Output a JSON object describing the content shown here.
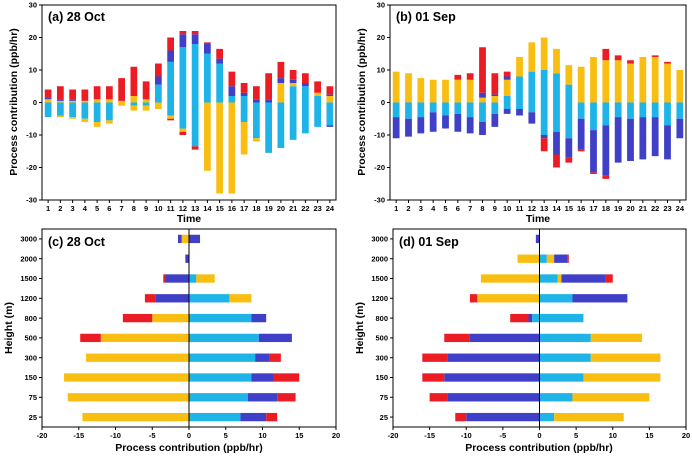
{
  "colors": {
    "sky": "#1EB4E8",
    "orange": "#F9BE12",
    "red": "#EC1C24",
    "navy": "#3F3FC7"
  },
  "chart_data": [
    {
      "type": "bar",
      "stacked": true,
      "title": "(a)  28 Oct",
      "xlabel": "Time",
      "ylabel": "Process contribution (ppb/hr)",
      "ylim": [
        -30,
        30
      ],
      "yticks": [
        -30,
        -20,
        -10,
        0,
        10,
        20,
        30
      ],
      "categories": [
        "1",
        "2",
        "3",
        "4",
        "5",
        "6",
        "7",
        "8",
        "9",
        "10",
        "11",
        "12",
        "13",
        "14",
        "15",
        "16",
        "17",
        "18",
        "19",
        "20",
        "21",
        "22",
        "23",
        "24"
      ],
      "pos_series": [
        {
          "color": "sky",
          "values": [
            0,
            0,
            0,
            0,
            0,
            0,
            0,
            0,
            0,
            5.5,
            12.5,
            17,
            18,
            15,
            12,
            2,
            2,
            0,
            0,
            0,
            5,
            5,
            2,
            0
          ]
        },
        {
          "color": "orange",
          "values": [
            1,
            0.5,
            0.5,
            0.5,
            1,
            1,
            0.5,
            2,
            1,
            0,
            0,
            0,
            0,
            0,
            0,
            0,
            0,
            0,
            0,
            6,
            1,
            0,
            1,
            2
          ]
        },
        {
          "color": "navy",
          "values": [
            0.5,
            0.5,
            0.5,
            0,
            0,
            0,
            0,
            0,
            0,
            2.5,
            3.5,
            4,
            3,
            3,
            1.5,
            3,
            1,
            1,
            1,
            1.5,
            1,
            1,
            0,
            0.5
          ]
        },
        {
          "color": "red",
          "values": [
            2.5,
            4,
            3,
            3.5,
            4,
            4,
            7,
            9,
            5.5,
            4,
            4,
            1,
            1,
            0.5,
            3,
            4.5,
            3,
            4,
            8,
            5,
            3,
            3,
            3.5,
            2.5
          ]
        }
      ],
      "neg_series": [
        {
          "color": "sky",
          "values": [
            -4.5,
            -4,
            -4.5,
            -5,
            -6,
            -5.5,
            0,
            -1,
            -1,
            0,
            -4,
            -8,
            -13.5,
            0,
            0,
            0,
            -6,
            -11,
            -15.5,
            -14,
            -11.5,
            -9.5,
            -7.5,
            -7
          ]
        },
        {
          "color": "orange",
          "values": [
            0,
            -0.5,
            -0.5,
            -1,
            -1.5,
            -1,
            -1,
            -1.5,
            -1.5,
            -2,
            -1,
            -1,
            0,
            -21,
            -28,
            -28,
            -10,
            -1,
            0,
            0,
            0,
            0,
            0,
            0
          ]
        },
        {
          "color": "navy",
          "values": [
            0,
            0,
            0,
            0,
            0,
            0,
            0,
            0,
            0,
            0,
            0,
            0,
            0,
            0,
            0,
            0,
            0,
            0,
            0,
            0,
            0,
            0,
            0,
            -0.5
          ]
        },
        {
          "color": "red",
          "values": [
            0,
            0,
            0,
            0,
            0,
            0,
            0,
            0,
            0,
            0,
            -0.5,
            -1,
            -1,
            0,
            0,
            0,
            0,
            0,
            0,
            0,
            0,
            0,
            0,
            0
          ]
        }
      ]
    },
    {
      "type": "bar",
      "stacked": true,
      "title": "(b)  01 Sep",
      "xlabel": "Time",
      "ylabel": "Process contribution (ppb/hr)",
      "ylim": [
        -30,
        30
      ],
      "yticks": [
        -30,
        -20,
        -10,
        0,
        10,
        20,
        30
      ],
      "categories": [
        "1",
        "2",
        "3",
        "4",
        "5",
        "6",
        "7",
        "8",
        "9",
        "10",
        "11",
        "12",
        "13",
        "14",
        "15",
        "16",
        "17",
        "18",
        "19",
        "20",
        "21",
        "22",
        "23",
        "24"
      ],
      "pos_series": [
        {
          "color": "sky",
          "values": [
            0,
            0,
            0,
            0,
            0,
            0,
            0,
            0,
            0,
            2,
            8,
            9.5,
            10,
            9,
            5.5,
            0,
            0,
            0,
            0,
            0,
            0,
            0,
            0,
            0
          ]
        },
        {
          "color": "orange",
          "values": [
            9.5,
            9,
            7.5,
            7,
            7,
            7,
            7,
            1.5,
            2,
            5,
            6,
            9,
            10,
            7.5,
            6,
            11,
            14,
            13,
            13,
            12,
            14,
            14,
            12,
            10
          ]
        },
        {
          "color": "navy",
          "values": [
            0,
            0,
            0,
            0,
            0,
            0,
            0,
            1.5,
            0.5,
            1,
            0,
            0,
            0,
            0,
            0,
            0,
            0,
            0,
            0,
            0,
            0,
            0,
            0,
            0
          ]
        },
        {
          "color": "red",
          "values": [
            0,
            0,
            0,
            0,
            0,
            1.5,
            2,
            14,
            6.5,
            1.5,
            0,
            0,
            0,
            0,
            0,
            0,
            0,
            3.5,
            1.5,
            1,
            0,
            0.5,
            0.5,
            0
          ]
        }
      ],
      "neg_series": [
        {
          "color": "sky",
          "values": [
            -4.5,
            -5,
            -4.5,
            -3,
            -4,
            -3.5,
            -4.5,
            -6,
            -3.5,
            -2,
            -2,
            -3,
            -10,
            -9,
            -11,
            -5,
            -8.5,
            -7,
            -4.5,
            -5,
            -4.5,
            -4.5,
            -7,
            -5
          ]
        },
        {
          "color": "orange",
          "values": [
            0,
            0,
            0,
            0,
            0,
            0,
            0,
            0,
            0,
            0,
            0,
            0,
            0,
            0,
            0,
            0,
            0,
            0,
            0,
            0,
            0,
            0,
            0,
            0
          ]
        },
        {
          "color": "navy",
          "values": [
            -6.5,
            -5.5,
            -5,
            -6,
            -4,
            -5.5,
            -5,
            -4,
            -4,
            -1.5,
            -2,
            -3.5,
            -1,
            -7,
            -6,
            -9.5,
            -13,
            -15.5,
            -14,
            -13,
            -13,
            -12,
            -10.5,
            -6
          ]
        },
        {
          "color": "red",
          "values": [
            0,
            0,
            0,
            0,
            0,
            0,
            0,
            0,
            0,
            0,
            0,
            0,
            -4,
            -4,
            -1.5,
            -0.5,
            -0.5,
            -1,
            0,
            0,
            0,
            0,
            0,
            0
          ]
        }
      ]
    },
    {
      "type": "bar",
      "orientation": "horizontal",
      "stacked": true,
      "title": "(c)  28 Oct",
      "xlabel": "Process contribution (ppb/hr)",
      "ylabel": "Height (m)",
      "xlim": [
        -20,
        20
      ],
      "xticks": [
        -20,
        -15,
        -10,
        -5,
        0,
        5,
        10,
        15,
        20
      ],
      "categories": [
        "3000",
        "2000",
        "1500",
        "1200",
        "800",
        "500",
        "300",
        "150",
        "75",
        "25"
      ],
      "pos_series": [
        {
          "color": "sky",
          "values": [
            0,
            0,
            1,
            5.5,
            8.5,
            9.5,
            9,
            8.5,
            8,
            7
          ]
        },
        {
          "color": "orange",
          "values": [
            0,
            0,
            2.5,
            3,
            0,
            0,
            0,
            0,
            0,
            0
          ]
        },
        {
          "color": "navy",
          "values": [
            1.5,
            0,
            0,
            0,
            2,
            4.5,
            2,
            3,
            4,
            3.5
          ]
        },
        {
          "color": "red",
          "values": [
            0,
            0,
            0,
            0,
            0,
            0,
            1.5,
            3.5,
            2.5,
            1.5
          ]
        }
      ],
      "neg_series": [
        {
          "color": "sky",
          "values": [
            0,
            0,
            0,
            0,
            0,
            0,
            0,
            0,
            0,
            0
          ]
        },
        {
          "color": "orange",
          "values": [
            -1,
            0,
            0,
            0,
            -5,
            -12,
            -14,
            -17,
            -16.5,
            -14.5
          ]
        },
        {
          "color": "navy",
          "values": [
            -0.5,
            -0.5,
            -3.2,
            -4.5,
            0,
            0,
            0,
            0,
            0,
            0
          ]
        },
        {
          "color": "red",
          "values": [
            0,
            0,
            -0.3,
            -1.5,
            -4,
            -2.8,
            0,
            0,
            0,
            0
          ]
        }
      ]
    },
    {
      "type": "bar",
      "orientation": "horizontal",
      "stacked": true,
      "title": "(d)  01 Sep",
      "xlabel": "Process contribution (ppb/hr)",
      "ylabel": "Height (m)",
      "xlim": [
        -20,
        20
      ],
      "xticks": [
        -20,
        -15,
        -10,
        -5,
        0,
        5,
        10,
        15,
        20
      ],
      "categories": [
        "3000",
        "2000",
        "1500",
        "1200",
        "800",
        "500",
        "300",
        "150",
        "75",
        "25"
      ],
      "pos_series": [
        {
          "color": "sky",
          "values": [
            0,
            1,
            2.5,
            4.5,
            6,
            7,
            7,
            6,
            4.5,
            2
          ]
        },
        {
          "color": "orange",
          "values": [
            0,
            1,
            0.5,
            0,
            0,
            7,
            9.5,
            10.5,
            10.5,
            9.5
          ]
        },
        {
          "color": "navy",
          "values": [
            0,
            1.8,
            6,
            7.5,
            0,
            0,
            0,
            0,
            0,
            0
          ]
        },
        {
          "color": "red",
          "values": [
            0,
            0.2,
            1,
            0,
            0,
            0,
            0,
            0,
            0,
            0
          ]
        }
      ],
      "neg_series": [
        {
          "color": "sky",
          "values": [
            0,
            0,
            0,
            0,
            -1,
            0,
            0,
            0,
            0,
            0
          ]
        },
        {
          "color": "orange",
          "values": [
            0,
            -3,
            -8,
            -8.5,
            0,
            0,
            0,
            0,
            0,
            0
          ]
        },
        {
          "color": "navy",
          "values": [
            -0.5,
            0,
            0,
            0,
            -0.5,
            -9.5,
            -12.5,
            -13,
            -12.5,
            -10
          ]
        },
        {
          "color": "red",
          "values": [
            0,
            0,
            0,
            -1,
            -2.5,
            -3.5,
            -3.5,
            -3,
            -2.5,
            -1.5
          ]
        }
      ]
    }
  ]
}
